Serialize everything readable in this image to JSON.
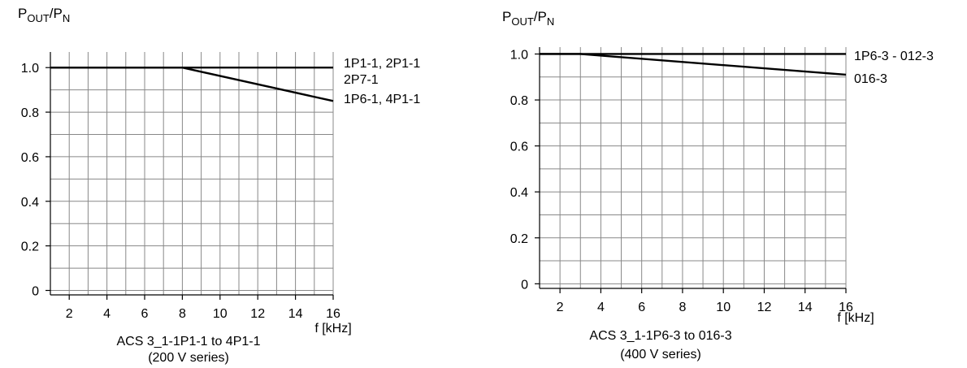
{
  "chart_data": [
    {
      "type": "line",
      "ylabel": {
        "base": "P",
        "sub1": "OUT",
        "sep": "/P",
        "sub2": "N"
      },
      "xlabel": "f [kHz]",
      "caption": [
        "ACS 3_1-1P1-1 to 4P1-1",
        "(200 V series)"
      ],
      "xlim": [
        1,
        16
      ],
      "ylim": [
        -0.02,
        1.07
      ],
      "xticks": [
        2,
        4,
        6,
        8,
        10,
        12,
        14,
        16
      ],
      "xticklabels": [
        "2",
        "4",
        "6",
        "8",
        "10",
        "12",
        "14",
        "16"
      ],
      "yticks": [
        0,
        0.2,
        0.4,
        0.6,
        0.8,
        1.0
      ],
      "yticklabels": [
        "0",
        "0.2",
        "0.4",
        "0.6",
        "0.8",
        "1.0"
      ],
      "grid": true,
      "series": [
        {
          "name": "1P1-1, 2P1-1",
          "x": [
            1,
            16
          ],
          "y": [
            1.0,
            1.0
          ]
        },
        {
          "name": "1P6-1, 4P1-1",
          "x": [
            1,
            8,
            16
          ],
          "y": [
            1.0,
            1.0,
            0.85
          ]
        }
      ],
      "end_labels": [
        "1P1-1, 2P1-1",
        "2P7-1",
        "1P6-1, 4P1-1"
      ]
    },
    {
      "type": "line",
      "ylabel": {
        "base": "P",
        "sub1": "OUT",
        "sep": "/P",
        "sub2": "N"
      },
      "xlabel": "f [kHz]",
      "caption": [
        "ACS 3_1-1P6-3 to 016-3",
        "(400 V series)"
      ],
      "xlim": [
        1,
        16
      ],
      "ylim": [
        -0.02,
        1.03
      ],
      "xticks": [
        2,
        4,
        6,
        8,
        10,
        12,
        14,
        16
      ],
      "xticklabels": [
        "2",
        "4",
        "6",
        "8",
        "10",
        "12",
        "14",
        "16"
      ],
      "yticks": [
        0,
        0.2,
        0.4,
        0.6,
        0.8,
        1.0
      ],
      "yticklabels": [
        "0",
        "0.2",
        "0.4",
        "0.6",
        "0.8",
        "1.0"
      ],
      "grid": true,
      "series": [
        {
          "name": "1P6-3 - 012-3",
          "x": [
            1,
            16
          ],
          "y": [
            1.0,
            1.0
          ]
        },
        {
          "name": "016-3",
          "x": [
            1,
            3,
            16
          ],
          "y": [
            1.0,
            1.0,
            0.91
          ]
        }
      ],
      "end_labels": [
        "1P6-3 - 012-3",
        "016-3"
      ]
    }
  ]
}
